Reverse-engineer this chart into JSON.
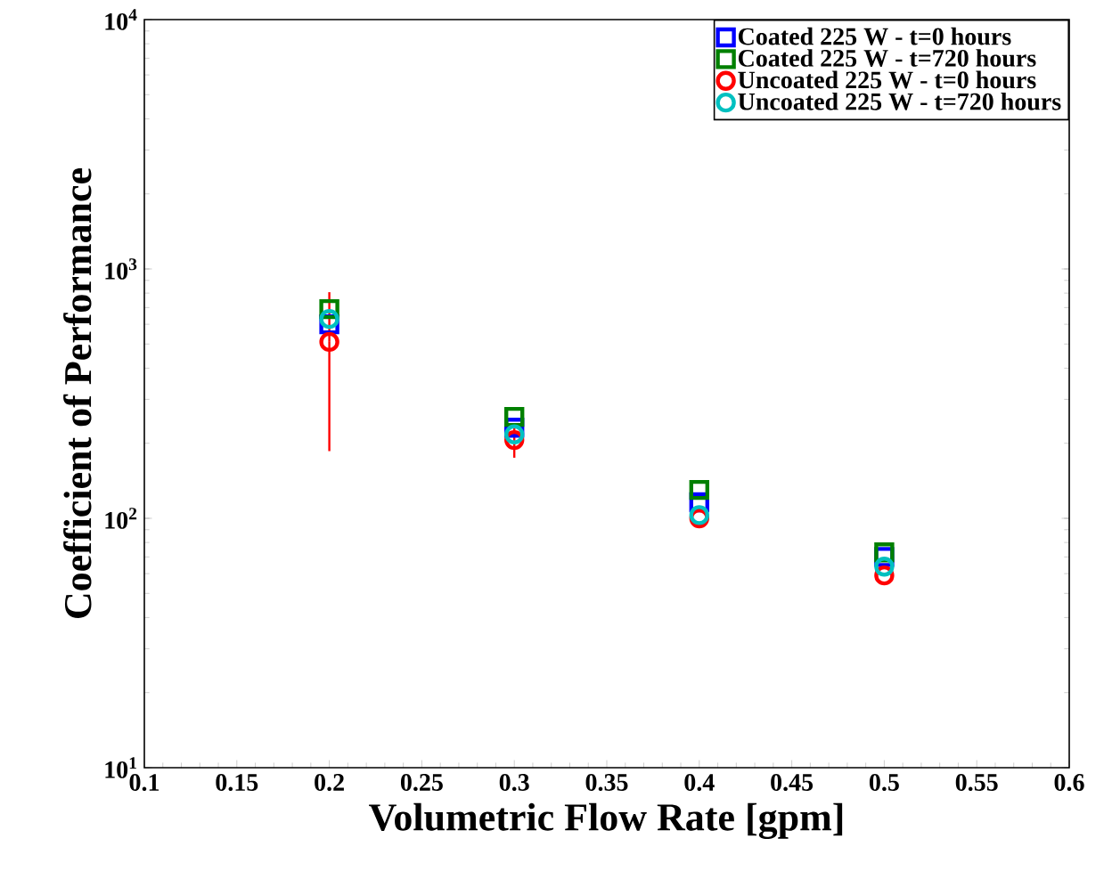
{
  "chart_data": {
    "type": "scatter",
    "xlabel": "Volumetric Flow Rate [gpm]",
    "ylabel": "Coefficient of Performance",
    "x": [
      0.2,
      0.3,
      0.4,
      0.5
    ],
    "series": [
      {
        "name": "Coated 225 W - t=0 hours",
        "color": "#0000ff",
        "marker": "square",
        "values": [
          600,
          231,
          116,
          70
        ]
      },
      {
        "name": "Coated 225 W - t=720 hours",
        "color": "#008000",
        "marker": "square",
        "values": [
          690,
          255,
          130,
          73
        ]
      },
      {
        "name": "Uncoated 225 W - t=0 hours",
        "color": "#ff0000",
        "marker": "circle",
        "values": [
          510,
          206,
          100,
          59
        ],
        "errors": [
          [
            186,
            807
          ],
          [
            175,
            240
          ],
          null,
          null
        ]
      },
      {
        "name": "Uncoated 225 W - t=720 hours",
        "color": "#00c0c0",
        "marker": "circle",
        "values": [
          630,
          217,
          103,
          64
        ]
      }
    ],
    "log": "y",
    "xlim": [
      0.1,
      0.6
    ],
    "ylim": [
      10,
      10000
    ],
    "xticks": [
      0.1,
      0.15,
      0.2,
      0.25,
      0.3,
      0.35,
      0.4,
      0.45,
      0.5,
      0.55,
      0.6
    ],
    "yticks": [
      {
        "value": 10,
        "label": "10$^{1}$"
      },
      {
        "value": 100,
        "label": "10$^{2}$"
      },
      {
        "value": 1000,
        "label": "10$^{3}$"
      },
      {
        "value": 10000,
        "label": "10$^{4}$"
      }
    ],
    "grid": false,
    "legend": "top right"
  }
}
